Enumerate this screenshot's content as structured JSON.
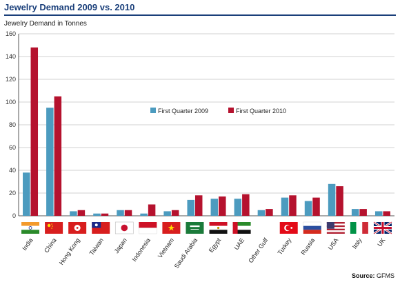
{
  "header": {
    "title": "Jewelry Demand 2009 vs. 2010",
    "subtitle": "Jewelry Demand in Tonnes"
  },
  "footer": {
    "source_label": "Source:",
    "source_value": "GFMS"
  },
  "colors": {
    "q1_2009": "#4c9bbf",
    "q1_2010": "#b5122e",
    "title": "#1a3f7a"
  },
  "chart_data": {
    "type": "bar",
    "title": "Jewelry Demand 2009 vs. 2010",
    "ylabel": "Jewelry Demand in Tonnes",
    "xlabel": "",
    "ylim": [
      0,
      160
    ],
    "yticks": [
      0,
      20,
      40,
      60,
      80,
      100,
      120,
      140,
      160
    ],
    "grid": true,
    "legend_position": "center",
    "categories": [
      "India",
      "China",
      "Hong Kong",
      "Taiwan",
      "Japan",
      "Indonesia",
      "Vietnam",
      "Saudi Arabia",
      "Egypt",
      "UAE",
      "Other Gulf",
      "Turkey",
      "Russia",
      "USA",
      "Italy",
      "UK"
    ],
    "series": [
      {
        "name": "First Quarter 2009",
        "values": [
          38,
          95,
          4,
          2,
          5,
          2,
          4,
          14,
          15,
          15,
          5,
          16,
          13,
          28,
          6,
          4
        ]
      },
      {
        "name": "First Quarter 2010",
        "values": [
          148,
          105,
          5,
          2,
          5,
          10,
          5,
          18,
          17,
          19,
          6,
          18,
          16,
          26,
          6,
          4
        ]
      }
    ],
    "flags": [
      "india-flag",
      "china-flag",
      "hong-kong-flag",
      "taiwan-flag",
      "japan-flag",
      "indonesia-flag",
      "vietnam-flag",
      "saudi-arabia-flag",
      "egypt-flag",
      "uae-flag",
      "other-gulf-flag",
      "turkey-flag",
      "russia-flag",
      "usa-flag",
      "italy-flag",
      "uk-flag"
    ]
  }
}
